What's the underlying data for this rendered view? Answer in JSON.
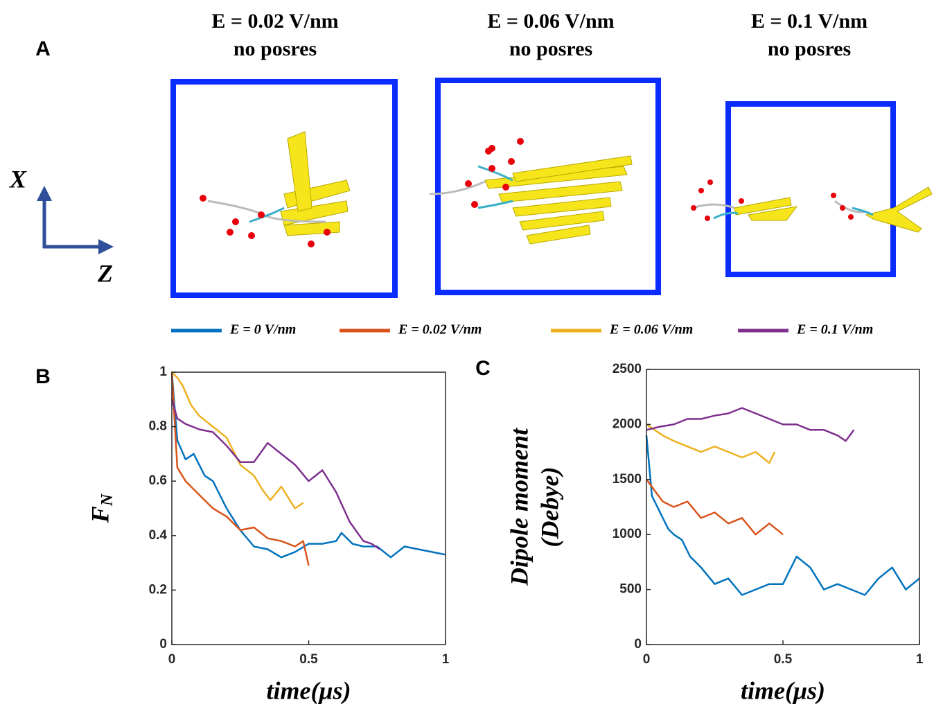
{
  "panel_a": {
    "label": "A",
    "titles": [
      [
        "E = 0.02 V/nm",
        "no posres"
      ],
      [
        "E = 0.06 V/nm",
        "no posres"
      ],
      [
        "E = 0.1 V/nm",
        "no posres"
      ]
    ],
    "axis_labels": [
      "X",
      "Z"
    ]
  },
  "chart_data": [
    {
      "type": "line",
      "label": "B",
      "xlabel": "time(μs)",
      "ylabel": "F",
      "ylabel_subscript": "N",
      "xlim": [
        0,
        1
      ],
      "xticks": [
        0,
        0.5,
        1
      ],
      "ylim": [
        0,
        1
      ],
      "yticks": [
        0,
        0.2,
        0.4,
        0.6,
        0.8,
        1
      ],
      "series": [
        {
          "name": "E = 0 V/nm",
          "color": "#0072bd",
          "x": [
            0,
            0.02,
            0.05,
            0.08,
            0.12,
            0.15,
            0.2,
            0.25,
            0.3,
            0.35,
            0.4,
            0.45,
            0.5,
            0.55,
            0.6,
            0.62,
            0.66,
            0.7,
            0.75,
            0.8,
            0.85,
            0.9,
            0.95,
            1.0
          ],
          "values": [
            1,
            0.75,
            0.68,
            0.7,
            0.62,
            0.6,
            0.5,
            0.42,
            0.36,
            0.35,
            0.32,
            0.34,
            0.37,
            0.37,
            0.38,
            0.41,
            0.37,
            0.36,
            0.36,
            0.32,
            0.36,
            0.35,
            0.34,
            0.33
          ]
        },
        {
          "name": "E = 0.02 V/nm",
          "color": "#d95319",
          "x": [
            0,
            0.02,
            0.05,
            0.08,
            0.1,
            0.15,
            0.2,
            0.25,
            0.3,
            0.35,
            0.4,
            0.45,
            0.48,
            0.5
          ],
          "values": [
            1,
            0.65,
            0.6,
            0.57,
            0.55,
            0.5,
            0.47,
            0.42,
            0.43,
            0.39,
            0.38,
            0.36,
            0.38,
            0.29
          ]
        },
        {
          "name": "E = 0.06 V/nm",
          "color": "#edb120",
          "x": [
            0,
            0.02,
            0.04,
            0.07,
            0.1,
            0.15,
            0.2,
            0.25,
            0.3,
            0.33,
            0.36,
            0.4,
            0.45,
            0.48
          ],
          "values": [
            1,
            0.98,
            0.95,
            0.88,
            0.84,
            0.8,
            0.76,
            0.66,
            0.62,
            0.57,
            0.53,
            0.58,
            0.5,
            0.52
          ]
        },
        {
          "name": "E = 0.1 V/nm",
          "color": "#7e2f8e",
          "x": [
            0,
            0.02,
            0.05,
            0.1,
            0.15,
            0.2,
            0.25,
            0.3,
            0.35,
            0.4,
            0.45,
            0.5,
            0.55,
            0.6,
            0.65,
            0.7,
            0.73,
            0.76
          ],
          "values": [
            0.9,
            0.83,
            0.81,
            0.79,
            0.78,
            0.73,
            0.67,
            0.67,
            0.74,
            0.7,
            0.66,
            0.6,
            0.64,
            0.56,
            0.45,
            0.38,
            0.37,
            0.35
          ]
        }
      ]
    },
    {
      "type": "line",
      "label": "C",
      "xlabel": "time(μs)",
      "ylabel": [
        "Dipole moment",
        "(Debye)"
      ],
      "xlim": [
        0,
        1
      ],
      "xticks": [
        0,
        0.5,
        1
      ],
      "ylim": [
        0,
        2500
      ],
      "yticks": [
        0,
        500,
        1000,
        1500,
        2000,
        2500
      ],
      "series": [
        {
          "color": "#0072bd",
          "x": [
            0,
            0.02,
            0.05,
            0.08,
            0.1,
            0.13,
            0.16,
            0.2,
            0.25,
            0.3,
            0.35,
            0.4,
            0.45,
            0.5,
            0.55,
            0.6,
            0.65,
            0.7,
            0.75,
            0.8,
            0.85,
            0.9,
            0.95,
            1.0
          ],
          "values": [
            1900,
            1350,
            1200,
            1050,
            1000,
            950,
            800,
            700,
            550,
            600,
            450,
            500,
            550,
            550,
            800,
            700,
            500,
            550,
            500,
            450,
            600,
            700,
            500,
            600
          ]
        },
        {
          "color": "#d95319",
          "x": [
            0,
            0.03,
            0.06,
            0.1,
            0.15,
            0.2,
            0.25,
            0.3,
            0.35,
            0.4,
            0.45,
            0.5
          ],
          "values": [
            1500,
            1400,
            1300,
            1250,
            1300,
            1150,
            1200,
            1100,
            1150,
            1000,
            1100,
            1000
          ]
        },
        {
          "color": "#edb120",
          "x": [
            0,
            0.03,
            0.06,
            0.1,
            0.15,
            0.2,
            0.25,
            0.3,
            0.35,
            0.4,
            0.45,
            0.47
          ],
          "values": [
            2000,
            1950,
            1900,
            1850,
            1800,
            1750,
            1800,
            1750,
            1700,
            1750,
            1650,
            1750
          ]
        },
        {
          "color": "#7e2f8e",
          "x": [
            0,
            0.05,
            0.1,
            0.15,
            0.2,
            0.25,
            0.3,
            0.35,
            0.4,
            0.45,
            0.5,
            0.55,
            0.6,
            0.65,
            0.7,
            0.73,
            0.76
          ],
          "values": [
            1950,
            1980,
            2000,
            2050,
            2050,
            2080,
            2100,
            2150,
            2100,
            2050,
            2000,
            2000,
            1950,
            1950,
            1900,
            1850,
            1950
          ]
        }
      ]
    }
  ]
}
